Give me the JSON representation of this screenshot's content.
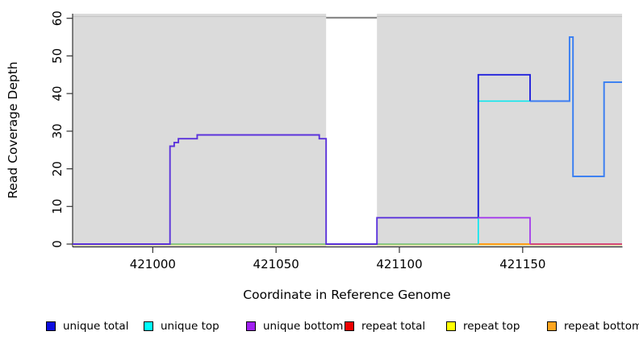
{
  "figure": {
    "x_axis": {
      "label": "Coordinate in Reference Genome",
      "ticks": [
        421000,
        421050,
        421100,
        421150
      ]
    },
    "y_axis": {
      "label": "Read Coverage Depth",
      "ticks": [
        0,
        10,
        20,
        30,
        40,
        50,
        60
      ]
    },
    "legend": [
      {
        "label": "unique total",
        "color": "#0e0edf"
      },
      {
        "label": "unique top",
        "color": "#00ffff"
      },
      {
        "label": "unique bottom",
        "color": "#a020f0"
      },
      {
        "label": "repeat total",
        "color": "#ee0000"
      },
      {
        "label": "repeat top",
        "color": "#ffff00"
      },
      {
        "label": "repeat bottom",
        "color": "#ffa51e"
      }
    ]
  },
  "chart_data": {
    "type": "line",
    "title": "",
    "xlabel": "Coordinate in Reference Genome",
    "ylabel": "Read Coverage Depth",
    "xlim": [
      420967.5,
      421190.3
    ],
    "ylim": [
      0,
      60
    ],
    "grid": false,
    "legend_position": "bottom",
    "background_bands": {
      "color": "#dbdbdb",
      "regions": [
        [
          420967.5,
          421070.3
        ],
        [
          421090.9,
          421190.3
        ]
      ]
    },
    "gap_top_marker": {
      "x1": 421070.3,
      "x2": 421090.9,
      "y": 60,
      "color": "#8a8a8a"
    },
    "series": [
      {
        "name": "unique total",
        "color": "#0e0edf",
        "steps": [
          [
            420967.5,
            0
          ],
          [
            421007,
            26
          ],
          [
            421009,
            27
          ],
          [
            421010,
            28
          ],
          [
            421018,
            29
          ],
          [
            421068,
            28
          ],
          [
            421070,
            0
          ],
          [
            421091,
            7
          ],
          [
            421132,
            45
          ],
          [
            421153,
            38
          ],
          [
            421169,
            55
          ],
          [
            421170,
            18
          ],
          [
            421183,
            43
          ]
        ]
      },
      {
        "name": "unique top",
        "color": "#00ffff",
        "steps": [
          [
            420967.5,
            0
          ],
          [
            421132,
            38
          ],
          [
            421169,
            55
          ],
          [
            421170,
            18
          ],
          [
            421183,
            43
          ]
        ]
      },
      {
        "name": "unique bottom",
        "color": "#a020f0",
        "steps": [
          [
            420967.5,
            0
          ],
          [
            421007,
            26
          ],
          [
            421009,
            27
          ],
          [
            421010,
            28
          ],
          [
            421018,
            29
          ],
          [
            421068,
            28
          ],
          [
            421070,
            0
          ],
          [
            421091,
            7
          ],
          [
            421153,
            0
          ]
        ]
      },
      {
        "name": "repeat total",
        "color": "#ee0000",
        "steps": [
          [
            420967.5,
            0
          ]
        ]
      },
      {
        "name": "repeat top",
        "color": "#ffff00",
        "steps": [
          [
            420967.5,
            0
          ]
        ]
      },
      {
        "name": "repeat bottom",
        "color": "#ffa51e",
        "steps": [
          [
            420967.5,
            0
          ]
        ]
      }
    ],
    "render_paths": [
      {
        "name": "repeat-top-baseline",
        "color": "#ece77e",
        "width": 1.3,
        "dy": 1.0,
        "pts": [
          [
            420967.5,
            0
          ],
          [
            421190.3,
            0
          ]
        ]
      },
      {
        "name": "unique-top-baseline-green",
        "color": "#6fc077",
        "width": 1.5,
        "dy": 0,
        "pts": [
          [
            420967.5,
            0
          ],
          [
            421132,
            0
          ]
        ]
      },
      {
        "name": "repeat-bottom-baseline-orange",
        "color": "#ff9e1b",
        "width": 1.9,
        "dy": 0,
        "pts": [
          [
            421132,
            0
          ],
          [
            421153,
            0
          ]
        ]
      },
      {
        "name": "repeat-total-baseline-pink",
        "color": "#d64a7c",
        "width": 1.9,
        "dy": 0,
        "pts": [
          [
            421153,
            0
          ],
          [
            421190.3,
            0
          ]
        ]
      },
      {
        "name": "unique-top-line",
        "color": "#00e8f0",
        "width": 1.6,
        "dy": 0,
        "pts": [
          [
            421132,
            0
          ],
          [
            421132,
            38
          ],
          [
            421169,
            38
          ],
          [
            421169,
            55
          ],
          [
            421170.4,
            55
          ],
          [
            421170.4,
            18
          ],
          [
            421183,
            18
          ],
          [
            421183,
            43
          ],
          [
            421190.3,
            43
          ]
        ]
      },
      {
        "name": "unique-total-line",
        "color": "#2020dc",
        "width": 1.9,
        "dy": 0,
        "pts": [
          [
            421132,
            7
          ],
          [
            421132,
            45
          ],
          [
            421153,
            45
          ],
          [
            421153,
            38
          ]
        ]
      },
      {
        "name": "unique-total-over-top-line",
        "color": "#3b7cf2",
        "width": 1.9,
        "dy": 0,
        "pts": [
          [
            421153,
            38
          ],
          [
            421169,
            38
          ],
          [
            421169,
            55
          ],
          [
            421170.4,
            55
          ],
          [
            421170.4,
            18
          ],
          [
            421183,
            18
          ],
          [
            421183,
            43
          ],
          [
            421190.3,
            43
          ]
        ]
      },
      {
        "name": "unique-total-bottom-overlap",
        "color": "#5b33db",
        "width": 1.9,
        "dy": 0,
        "pts": [
          [
            420967.5,
            0
          ],
          [
            421007,
            0
          ],
          [
            421007,
            26
          ],
          [
            421008.7,
            26
          ],
          [
            421008.7,
            27
          ],
          [
            421010.4,
            27
          ],
          [
            421010.4,
            28
          ],
          [
            421018,
            28
          ],
          [
            421018,
            29
          ],
          [
            421067.5,
            29
          ],
          [
            421067.5,
            28
          ],
          [
            421070.3,
            28
          ],
          [
            421070.3,
            0
          ],
          [
            421090.9,
            0
          ],
          [
            421090.9,
            7
          ],
          [
            421132,
            7
          ]
        ]
      },
      {
        "name": "unique-bottom-line",
        "color": "#a43bec",
        "width": 1.8,
        "dy": 0,
        "pts": [
          [
            421132,
            7
          ],
          [
            421153,
            7
          ],
          [
            421153,
            0
          ]
        ]
      }
    ]
  }
}
